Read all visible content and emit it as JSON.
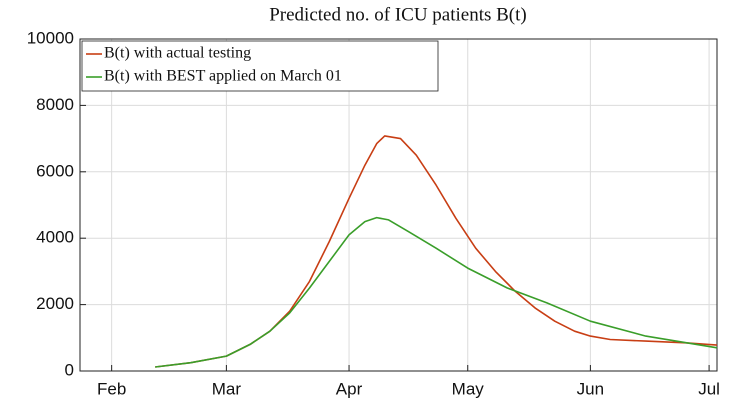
{
  "chart_data": {
    "type": "line",
    "title": "Predicted no. of ICU patients B(t)",
    "xlim": [
      -8,
      153
    ],
    "xticks": [
      {
        "value": 0,
        "label": "Feb"
      },
      {
        "value": 29,
        "label": "Mar"
      },
      {
        "value": 60,
        "label": "Apr"
      },
      {
        "value": 90,
        "label": "May"
      },
      {
        "value": 121,
        "label": "Jun"
      },
      {
        "value": 151,
        "label": "Jul"
      }
    ],
    "ylim": [
      0,
      10000
    ],
    "yticks": [
      0,
      2000,
      4000,
      6000,
      8000,
      10000
    ],
    "grid": true,
    "legend": "upper-left",
    "series": [
      {
        "name": "B(t) with actual testing",
        "color": "#c83e14",
        "x": [
          11,
          20,
          29,
          35,
          40,
          45,
          50,
          55,
          60,
          64,
          67,
          69,
          73,
          77,
          82,
          87,
          92,
          97,
          102,
          107,
          112,
          117,
          121,
          126,
          135,
          145,
          153
        ],
        "values": [
          120,
          250,
          450,
          800,
          1200,
          1800,
          2700,
          3900,
          5200,
          6200,
          6850,
          7080,
          7000,
          6500,
          5600,
          4600,
          3700,
          3000,
          2400,
          1900,
          1500,
          1200,
          1050,
          950,
          900,
          850,
          780
        ]
      },
      {
        "name": "B(t) with BEST applied on March 01",
        "color": "#3a9e2a",
        "x": [
          11,
          20,
          29,
          35,
          40,
          45,
          50,
          55,
          60,
          64,
          67,
          70,
          75,
          82,
          90,
          100,
          110,
          121,
          135,
          153
        ],
        "values": [
          120,
          250,
          450,
          800,
          1200,
          1750,
          2500,
          3300,
          4100,
          4500,
          4620,
          4550,
          4200,
          3700,
          3100,
          2500,
          2050,
          1500,
          1050,
          700
        ]
      }
    ]
  }
}
